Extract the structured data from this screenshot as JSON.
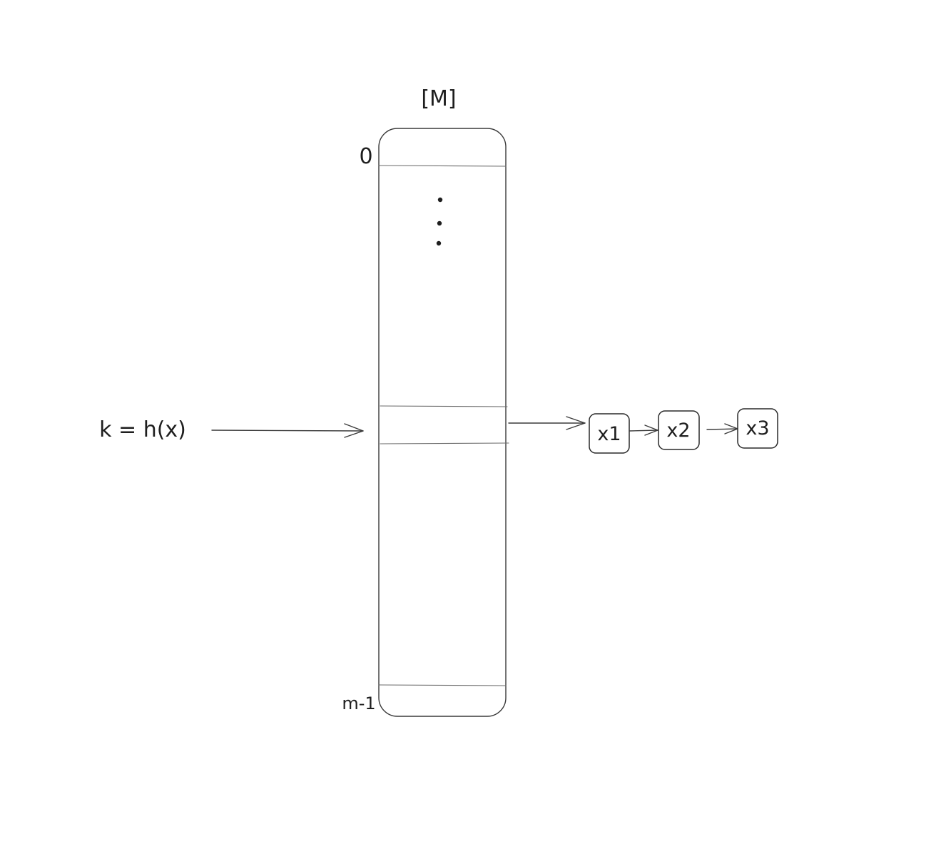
{
  "array_label": "[M]",
  "index_top": "0",
  "index_bottom": "m-1",
  "ellipsis": "⋮",
  "hash_expression": "k = h(x)",
  "chain": [
    {
      "label": "x1"
    },
    {
      "label": "x2"
    },
    {
      "label": "x3"
    }
  ],
  "colors": {
    "stroke": "#3a3a3a",
    "text": "#1e1e1e",
    "background": "#ffffff"
  }
}
